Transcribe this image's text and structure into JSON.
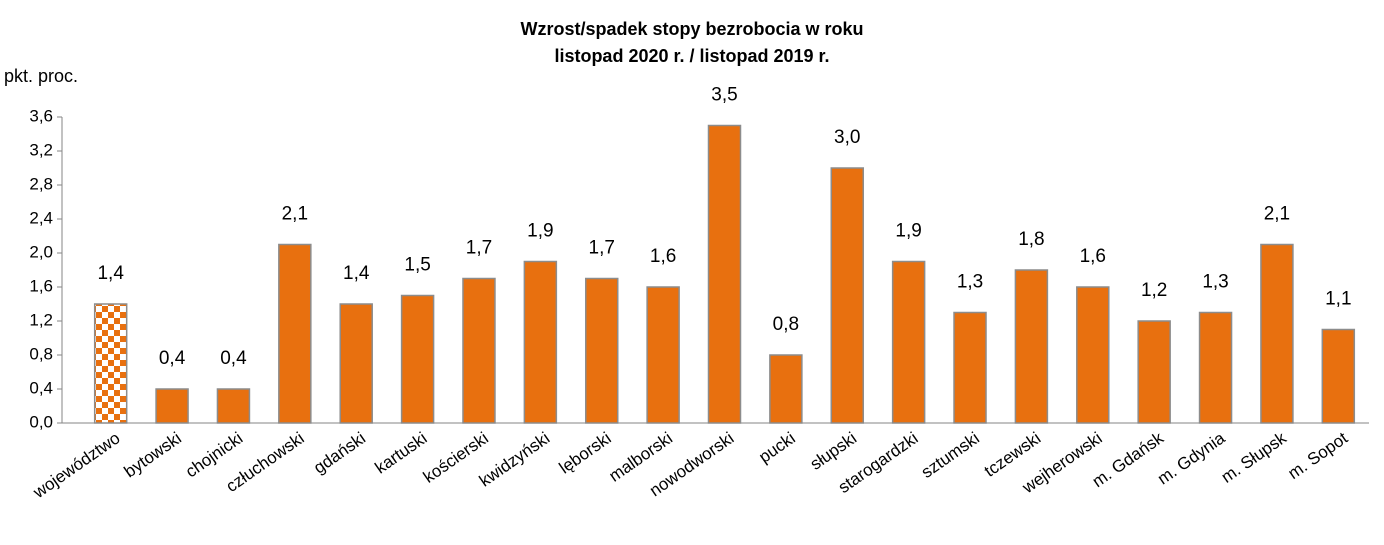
{
  "chart_data": {
    "type": "bar",
    "title": [
      "Wzrost/spadek stopy bezrobocia w roku",
      "listopad 2020 r. / listopad 2019 r."
    ],
    "y_axis_label": "pkt. proc.",
    "categories": [
      "województwo",
      "bytowski",
      "chojnicki",
      "człuchowski",
      "gdański",
      "kartuski",
      "kościerski",
      "kwidzyński",
      "lęborski",
      "malborski",
      "nowodworski",
      "pucki",
      "słupski",
      "starogardzki",
      "sztumski",
      "tczewski",
      "wejherowski",
      "m. Gdańsk",
      "m. Gdynia",
      "m. Słupsk",
      "m. Sopot"
    ],
    "values": [
      1.4,
      0.4,
      0.4,
      2.1,
      1.4,
      1.5,
      1.7,
      1.9,
      1.7,
      1.6,
      3.5,
      0.8,
      3.0,
      1.9,
      1.3,
      1.8,
      1.6,
      1.2,
      1.3,
      2.1,
      1.1
    ],
    "value_labels": [
      "1,4",
      "0,4",
      "0,4",
      "2,1",
      "1,4",
      "1,5",
      "1,7",
      "1,9",
      "1,7",
      "1,6",
      "3,5",
      "0,8",
      "3,0",
      "1,9",
      "1,3",
      "1,8",
      "1,6",
      "1,2",
      "1,3",
      "2,1",
      "1,1"
    ],
    "color": "#e8700f",
    "ylim": [
      0,
      3.6
    ],
    "yticks": [
      {
        "value": 0,
        "label": "0,0"
      },
      {
        "value": 0.4,
        "label": "0,4"
      },
      {
        "value": 0.8,
        "label": "0,8"
      },
      {
        "value": 1.2,
        "label": "1,2"
      },
      {
        "value": 1.6,
        "label": "1,6"
      },
      {
        "value": 2.0,
        "label": "2,0"
      },
      {
        "value": 2.4,
        "label": "2,4"
      },
      {
        "value": 2.8,
        "label": "2,8"
      },
      {
        "value": 3.2,
        "label": "3,2"
      },
      {
        "value": 3.6,
        "label": "3,6"
      }
    ],
    "grid": false
  }
}
